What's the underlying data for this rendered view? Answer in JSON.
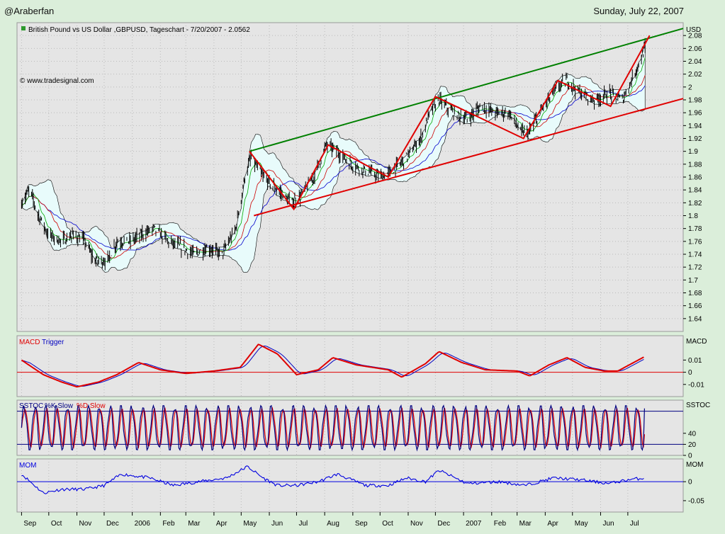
{
  "header": {
    "left": "@Araberfan",
    "right": "Sunday, July 22, 2007"
  },
  "chart_data": [
    {
      "type": "line",
      "title": "British Pound vs US Dollar ,GBPUSD, Tageschart - 7/20/2007 - 2.0562",
      "watermark": "© www.tradesignal.com",
      "unit": "USD",
      "ylim": [
        1.62,
        2.1
      ],
      "y_ticks": [
        1.64,
        1.66,
        1.68,
        1.7,
        1.72,
        1.74,
        1.76,
        1.78,
        1.8,
        1.82,
        1.84,
        1.86,
        1.88,
        1.9,
        1.92,
        1.94,
        1.96,
        1.98,
        2,
        2.02,
        2.04,
        2.06,
        2.08
      ],
      "x_months": [
        "Sep",
        "Oct",
        "Nov",
        "Dec",
        "2006",
        "Feb",
        "Mar",
        "Apr",
        "May",
        "Jun",
        "Jul",
        "Aug",
        "Sep",
        "Oct",
        "Nov",
        "Dec",
        "2007",
        "Feb",
        "Mar",
        "Apr",
        "May",
        "Jun",
        "Jul"
      ],
      "price_path": [
        [
          "2005-09-01",
          1.82
        ],
        [
          "2005-09-10",
          1.84
        ],
        [
          "2005-09-20",
          1.8
        ],
        [
          "2005-10-01",
          1.77
        ],
        [
          "2005-10-15",
          1.76
        ],
        [
          "2005-10-28",
          1.77
        ],
        [
          "2005-11-10",
          1.76
        ],
        [
          "2005-11-20",
          1.73
        ],
        [
          "2005-12-05",
          1.73
        ],
        [
          "2005-12-15",
          1.76
        ],
        [
          "2005-12-30",
          1.76
        ],
        [
          "2006-01-10",
          1.77
        ],
        [
          "2006-01-25",
          1.78
        ],
        [
          "2006-02-10",
          1.76
        ],
        [
          "2006-02-25",
          1.75
        ],
        [
          "2006-03-10",
          1.74
        ],
        [
          "2006-03-25",
          1.75
        ],
        [
          "2006-04-10",
          1.74
        ],
        [
          "2006-04-25",
          1.78
        ],
        [
          "2006-05-05",
          1.86
        ],
        [
          "2006-05-12",
          1.89
        ],
        [
          "2006-05-25",
          1.86
        ],
        [
          "2006-06-10",
          1.84
        ],
        [
          "2006-06-25",
          1.82
        ],
        [
          "2006-07-05",
          1.83
        ],
        [
          "2006-07-20",
          1.86
        ],
        [
          "2006-08-03",
          1.91
        ],
        [
          "2006-08-15",
          1.9
        ],
        [
          "2006-08-30",
          1.88
        ],
        [
          "2006-09-15",
          1.87
        ],
        [
          "2006-10-02",
          1.86
        ],
        [
          "2006-10-15",
          1.87
        ],
        [
          "2006-10-30",
          1.89
        ],
        [
          "2006-11-15",
          1.92
        ],
        [
          "2006-11-25",
          1.96
        ],
        [
          "2006-12-05",
          1.98
        ],
        [
          "2006-12-20",
          1.96
        ],
        [
          "2007-01-05",
          1.95
        ],
        [
          "2007-01-20",
          1.97
        ],
        [
          "2007-02-05",
          1.96
        ],
        [
          "2007-02-20",
          1.96
        ],
        [
          "2007-03-05",
          1.93
        ],
        [
          "2007-03-15",
          1.93
        ],
        [
          "2007-03-30",
          1.97
        ],
        [
          "2007-04-15",
          2.0
        ],
        [
          "2007-04-25",
          2.01
        ],
        [
          "2007-05-10",
          1.99
        ],
        [
          "2007-05-25",
          1.98
        ],
        [
          "2007-06-10",
          1.99
        ],
        [
          "2007-06-25",
          1.98
        ],
        [
          "2007-07-05",
          2.01
        ],
        [
          "2007-07-20",
          2.06
        ]
      ],
      "trendlines": [
        {
          "name": "upper-channel",
          "color": "#008000",
          "from": [
            "2006-05-10",
            1.9
          ],
          "to": [
            "2007-08-31",
            2.091
          ]
        },
        {
          "name": "lower-channel",
          "color": "#e00000",
          "from": [
            "2006-05-15",
            1.8
          ],
          "to": [
            "2007-08-31",
            1.982
          ]
        },
        {
          "name": "zigzag",
          "color": "#e00000",
          "points": [
            [
              "2006-05-10",
              1.9
            ],
            [
              "2006-06-28",
              1.81
            ],
            [
              "2006-08-05",
              1.91
            ],
            [
              "2006-10-10",
              1.86
            ],
            [
              "2006-12-01",
              1.985
            ],
            [
              "2007-03-08",
              1.92
            ],
            [
              "2007-04-15",
              2.01
            ],
            [
              "2007-06-12",
              1.97
            ],
            [
              "2007-07-25",
              2.08
            ]
          ]
        }
      ]
    },
    {
      "type": "line",
      "title": "MACD",
      "series": [
        {
          "name": "MACD",
          "color": "#e00000"
        },
        {
          "name": "Trigger",
          "color": "#0000c0"
        }
      ],
      "y_ticks_labels": [
        "0.01",
        "0",
        "-0.01"
      ],
      "y_ticks": [
        0.01,
        0,
        -0.01
      ],
      "ylim": [
        -0.02,
        0.03
      ],
      "values": [
        [
          "2005-09-01",
          0.01
        ],
        [
          "2005-09-25",
          -0.002
        ],
        [
          "2005-10-15",
          -0.008
        ],
        [
          "2005-11-01",
          -0.012
        ],
        [
          "2005-11-25",
          -0.008
        ],
        [
          "2005-12-15",
          -0.002
        ],
        [
          "2006-01-08",
          0.008
        ],
        [
          "2006-02-01",
          0.002
        ],
        [
          "2006-03-01",
          -0.001
        ],
        [
          "2006-04-01",
          0.001
        ],
        [
          "2006-04-30",
          0.004
        ],
        [
          "2006-05-20",
          0.023
        ],
        [
          "2006-06-10",
          0.015
        ],
        [
          "2006-07-01",
          -0.002
        ],
        [
          "2006-07-25",
          0.002
        ],
        [
          "2006-08-10",
          0.012
        ],
        [
          "2006-09-05",
          0.006
        ],
        [
          "2006-10-10",
          0.002
        ],
        [
          "2006-10-25",
          -0.004
        ],
        [
          "2006-11-20",
          0.007
        ],
        [
          "2006-12-05",
          0.017
        ],
        [
          "2006-12-30",
          0.008
        ],
        [
          "2007-01-25",
          0.002
        ],
        [
          "2007-03-01",
          0.001
        ],
        [
          "2007-03-15",
          -0.003
        ],
        [
          "2007-04-05",
          0.006
        ],
        [
          "2007-04-25",
          0.012
        ],
        [
          "2007-05-15",
          0.004
        ],
        [
          "2007-06-05",
          0.001
        ],
        [
          "2007-06-20",
          0.001
        ],
        [
          "2007-07-20",
          0.013
        ]
      ]
    },
    {
      "type": "line",
      "title": "SSTOC",
      "series": [
        {
          "name": "%K Slow",
          "color": "#000080"
        },
        {
          "name": "%D Slow",
          "color": "#e00000"
        }
      ],
      "y_ticks_labels": [
        "40",
        "20",
        "0"
      ],
      "y_ticks": [
        40,
        20,
        0
      ],
      "levels": [
        80,
        20
      ],
      "ylim": [
        0,
        100
      ],
      "oscillation": {
        "cycles": 58,
        "high": 90,
        "low": 10,
        "last": 85
      }
    },
    {
      "type": "line",
      "title": "MOM",
      "series": [
        {
          "name": "MOM",
          "color": "#0000e0"
        }
      ],
      "y_ticks_labels": [
        "0",
        "-0.05"
      ],
      "y_ticks": [
        0,
        -0.05
      ],
      "ylim": [
        -0.08,
        0.06
      ],
      "values": [
        [
          "2005-09-01",
          0.02
        ],
        [
          "2005-09-25",
          -0.03
        ],
        [
          "2005-10-15",
          -0.02
        ],
        [
          "2005-11-10",
          -0.02
        ],
        [
          "2005-12-01",
          -0.01
        ],
        [
          "2005-12-20",
          0.02
        ],
        [
          "2006-01-20",
          0.01
        ],
        [
          "2006-02-15",
          -0.01
        ],
        [
          "2006-03-15",
          0.0
        ],
        [
          "2006-04-15",
          0.01
        ],
        [
          "2006-05-08",
          0.04
        ],
        [
          "2006-05-25",
          0.01
        ],
        [
          "2006-06-10",
          -0.01
        ],
        [
          "2006-07-01",
          -0.01
        ],
        [
          "2006-07-25",
          0.0
        ],
        [
          "2006-08-15",
          0.02
        ],
        [
          "2006-09-15",
          -0.01
        ],
        [
          "2006-10-10",
          -0.01
        ],
        [
          "2006-10-30",
          0.01
        ],
        [
          "2006-11-20",
          0.0
        ],
        [
          "2006-12-05",
          0.03
        ],
        [
          "2007-01-05",
          -0.005
        ],
        [
          "2007-02-10",
          0.0
        ],
        [
          "2007-03-10",
          -0.01
        ],
        [
          "2007-04-10",
          0.01
        ],
        [
          "2007-05-10",
          0.005
        ],
        [
          "2007-06-10",
          -0.005
        ],
        [
          "2007-07-01",
          0.005
        ],
        [
          "2007-07-20",
          0.01
        ]
      ]
    }
  ]
}
